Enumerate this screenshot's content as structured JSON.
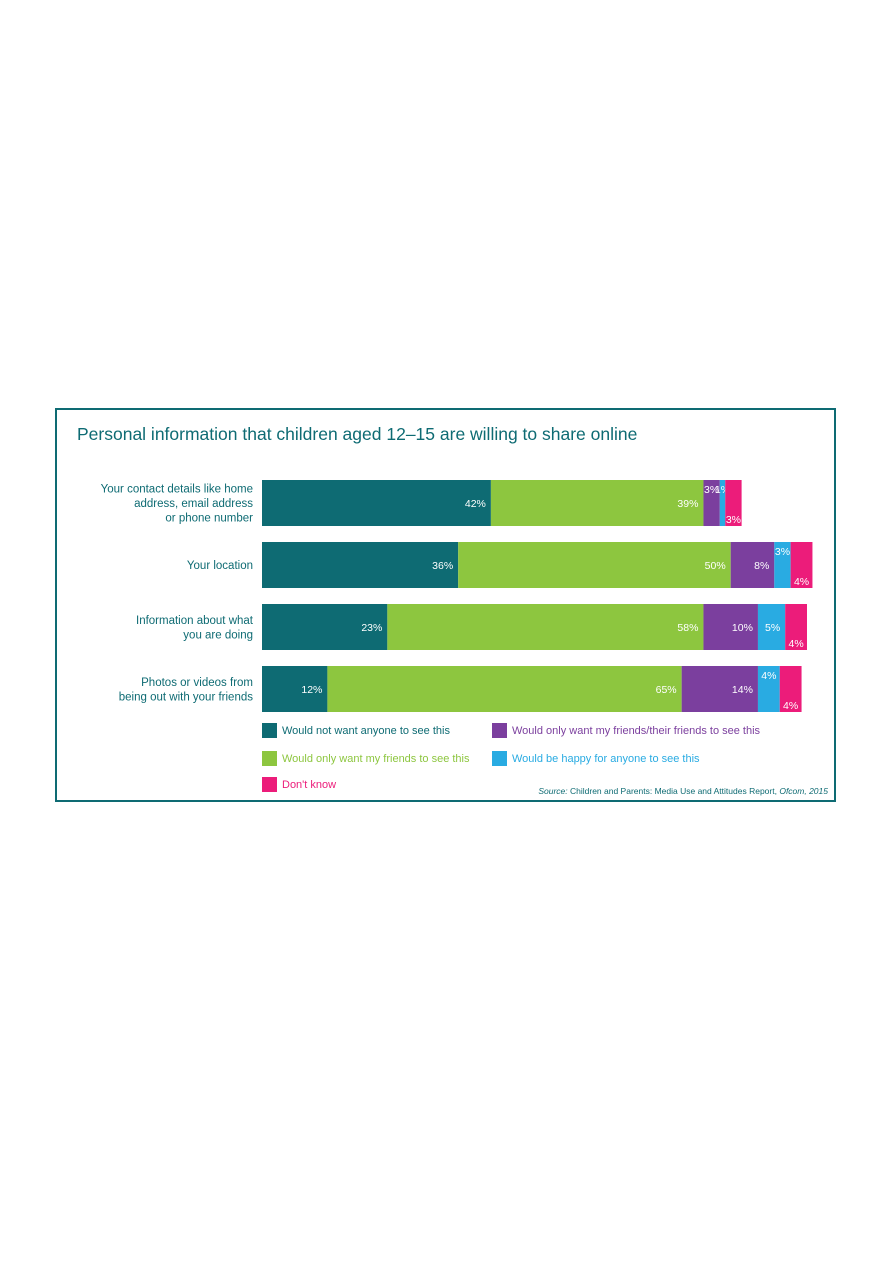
{
  "chart_data": {
    "type": "bar",
    "orientation": "horizontal",
    "stacked": true,
    "title": "Personal information that children aged 12–15 are willing to share online",
    "categories": [
      [
        "Your contact details like home",
        "address, email address",
        "or phone number"
      ],
      [
        "Your location"
      ],
      [
        "Information about what",
        "you are doing"
      ],
      [
        "Photos or videos from",
        "being out with your friends"
      ]
    ],
    "series": [
      {
        "name": "Would not want anyone to see this",
        "color": "#0e6b73",
        "values": [
          42,
          36,
          23,
          12
        ]
      },
      {
        "name": "Would only want my friends to see this",
        "color": "#8dc63f",
        "values": [
          39,
          50,
          58,
          65
        ]
      },
      {
        "name": "Would only want my friends/their friends to see this",
        "color": "#7b3f9e",
        "values": [
          3,
          8,
          10,
          14
        ]
      },
      {
        "name": "Would be happy for anyone to see this",
        "color": "#29abe2",
        "values": [
          1,
          3,
          5,
          4
        ]
      },
      {
        "name": "Don't know",
        "color": "#ec1c7a",
        "values": [
          3,
          4,
          4,
          4
        ]
      }
    ],
    "value_suffix": "%",
    "xlim": [
      0,
      100
    ],
    "grid": false,
    "legend_position": "bottom"
  },
  "source": {
    "label": "Source:",
    "text": "Children and Parents: Media Use and Attitudes Report,",
    "publisher": "Ofcom, 2015"
  }
}
